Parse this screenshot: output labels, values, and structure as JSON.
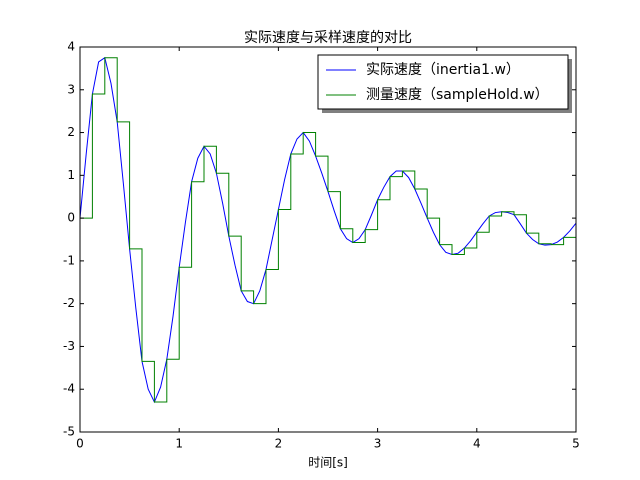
{
  "chart_data": {
    "type": "line",
    "title": "实际速度与采样速度的对比",
    "x_label": "时间[s]",
    "xlim": [
      0,
      5
    ],
    "xticks": [
      0,
      1,
      2,
      3,
      4,
      5
    ],
    "ylim": [
      -5,
      4
    ],
    "yticks": [
      -5,
      -4,
      -3,
      -2,
      -1,
      0,
      1,
      2,
      3,
      4
    ],
    "legend": "upper right",
    "series": [
      {
        "name": "实际速度（inertia1.w）",
        "color": "#0000ff",
        "x": [
          0,
          0.0625,
          0.125,
          0.1875,
          0.25,
          0.3125,
          0.375,
          0.4375,
          0.5,
          0.5625,
          0.625,
          0.6875,
          0.75,
          0.8125,
          0.875,
          0.9375,
          1,
          1.0625,
          1.125,
          1.1875,
          1.25,
          1.3125,
          1.375,
          1.4375,
          1.5,
          1.5625,
          1.625,
          1.6875,
          1.75,
          1.8125,
          1.875,
          1.9375,
          2,
          2.0625,
          2.125,
          2.1875,
          2.25,
          2.3125,
          2.375,
          2.4375,
          2.5,
          2.5625,
          2.625,
          2.6875,
          2.75,
          2.8125,
          2.875,
          2.9375,
          3,
          3.0625,
          3.125,
          3.1875,
          3.25,
          3.3125,
          3.375,
          3.4375,
          3.5,
          3.5625,
          3.625,
          3.6875,
          3.75,
          3.8125,
          3.875,
          3.9375,
          4,
          4.0625,
          4.125,
          4.1875,
          4.25,
          4.3125,
          4.375,
          4.4375,
          4.5,
          4.5625,
          4.625,
          4.6875,
          4.75,
          4.8125,
          4.875,
          4.9375,
          5
        ],
        "values": [
          0,
          1.5,
          2.9,
          3.65,
          3.75,
          3.15,
          2.25,
          0.8,
          -0.72,
          -2.1,
          -3.35,
          -4.0,
          -4.3,
          -3.95,
          -3.3,
          -2.3,
          -1.15,
          -0.1,
          0.85,
          1.4,
          1.68,
          1.5,
          1.05,
          0.35,
          -0.42,
          -1.1,
          -1.7,
          -1.95,
          -2.0,
          -1.7,
          -1.2,
          -0.5,
          0.2,
          0.9,
          1.5,
          1.85,
          2.0,
          1.8,
          1.45,
          1.05,
          0.62,
          0.17,
          -0.25,
          -0.48,
          -0.57,
          -0.48,
          -0.27,
          0.07,
          0.43,
          0.72,
          0.97,
          1.1,
          1.1,
          0.95,
          0.68,
          0.35,
          0.0,
          -0.33,
          -0.62,
          -0.8,
          -0.85,
          -0.82,
          -0.7,
          -0.53,
          -0.33,
          -0.13,
          0.05,
          0.13,
          0.15,
          0.13,
          0.08,
          -0.13,
          -0.35,
          -0.5,
          -0.6,
          -0.63,
          -0.62,
          -0.56,
          -0.45,
          -0.3,
          -0.12
        ]
      },
      {
        "name": "测量速度（sampleHold.w）",
        "color": "#008000",
        "drawstyle": "steps-post",
        "x": [
          0,
          0.125,
          0.25,
          0.375,
          0.5,
          0.625,
          0.75,
          0.875,
          1,
          1.125,
          1.25,
          1.375,
          1.5,
          1.625,
          1.75,
          1.875,
          2,
          2.125,
          2.25,
          2.375,
          2.5,
          2.625,
          2.75,
          2.875,
          3,
          3.125,
          3.25,
          3.375,
          3.5,
          3.625,
          3.75,
          3.875,
          4,
          4.125,
          4.25,
          4.375,
          4.5,
          4.625,
          4.75,
          4.875
        ],
        "values": [
          0,
          2.9,
          3.75,
          2.25,
          -0.72,
          -3.35,
          -4.3,
          -3.3,
          -1.15,
          0.85,
          1.68,
          1.05,
          -0.42,
          -1.7,
          -2.0,
          -1.2,
          0.2,
          1.5,
          2.0,
          1.45,
          0.62,
          -0.25,
          -0.57,
          -0.27,
          0.43,
          0.97,
          1.1,
          0.68,
          0.0,
          -0.62,
          -0.85,
          -0.7,
          -0.33,
          0.05,
          0.15,
          0.08,
          -0.35,
          -0.6,
          -0.62,
          -0.45
        ]
      }
    ]
  }
}
